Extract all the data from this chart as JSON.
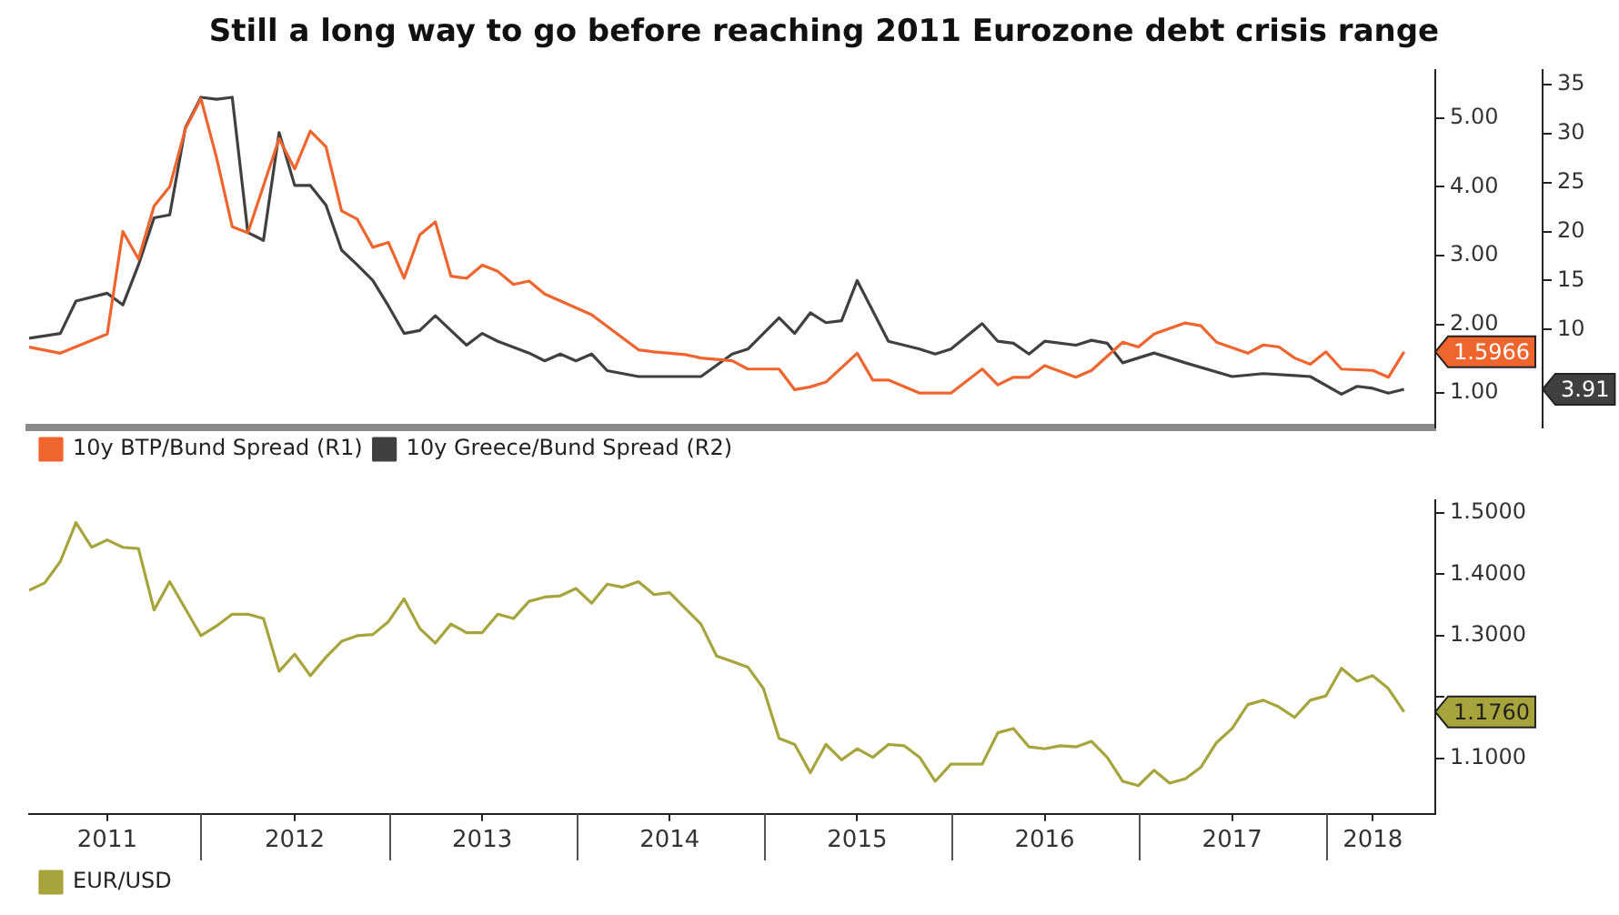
{
  "chart_data": [
    {
      "type": "line",
      "title": "Still a long way to go before reaching 2011 Eurozone debt crisis range",
      "tick_labels": "y",
      "legend": "bottom left",
      "marker": "none",
      "xlim": [
        "2011-02",
        "2018-08"
      ],
      "ylim": [
        0.5,
        5.7
      ],
      "yticks": [
        {
          "value": 1,
          "label": "1.00"
        },
        {
          "value": 2,
          "label": "2.00"
        },
        {
          "value": 3,
          "label": "3.00"
        },
        {
          "value": 4,
          "label": "4.00"
        },
        {
          "value": 5,
          "label": "5.00"
        }
      ],
      "y2lim": [
        0,
        36.5
      ],
      "y2ticks": [
        10,
        15,
        20,
        25,
        30,
        35
      ],
      "annotations": [
        "1.5966",
        "3.91"
      ],
      "series": [
        {
          "name": "10y BTP/Bund Spread (R1)",
          "color": "#f0642d",
          "x": [
            "2011-02",
            "2011-04",
            "2011-07",
            "2011-08",
            "2011-09",
            "2011-10",
            "2011-11",
            "2011-12",
            "2012-01",
            "2012-02",
            "2012-03",
            "2012-04",
            "2012-06",
            "2012-07",
            "2012-08",
            "2012-09",
            "2012-10",
            "2012-11",
            "2012-12",
            "2013-01",
            "2013-02",
            "2013-03",
            "2013-04",
            "2013-05",
            "2013-06",
            "2013-07",
            "2013-08",
            "2013-09",
            "2013-10",
            "2013-11",
            "2014-02",
            "2014-05",
            "2014-06",
            "2014-08",
            "2014-09",
            "2014-11",
            "2014-12",
            "2015-02",
            "2015-03",
            "2015-04",
            "2015-05",
            "2015-07",
            "2015-08",
            "2015-09",
            "2015-11",
            "2016-01",
            "2016-03",
            "2016-04",
            "2016-05",
            "2016-06",
            "2016-07",
            "2016-09",
            "2016-10",
            "2016-12",
            "2017-01",
            "2017-02",
            "2017-04",
            "2017-05",
            "2017-06",
            "2017-08",
            "2017-09",
            "2017-10",
            "2017-11",
            "2017-12",
            "2018-01",
            "2018-02",
            "2018-04",
            "2018-05",
            "2018-06"
          ],
          "values": [
            1.67,
            1.58,
            1.86,
            3.35,
            2.95,
            3.72,
            4.0,
            4.84,
            5.28,
            4.42,
            3.42,
            3.33,
            4.7,
            4.26,
            4.81,
            4.58,
            3.65,
            3.53,
            3.12,
            3.19,
            2.67,
            3.3,
            3.49,
            2.7,
            2.67,
            2.86,
            2.77,
            2.58,
            2.63,
            2.44,
            2.14,
            1.63,
            1.6,
            1.56,
            1.51,
            1.47,
            1.35,
            1.35,
            1.05,
            1.09,
            1.16,
            1.58,
            1.19,
            1.19,
            1.0,
            1.0,
            1.35,
            1.12,
            1.23,
            1.23,
            1.4,
            1.23,
            1.33,
            1.74,
            1.67,
            1.86,
            2.02,
            1.98,
            1.74,
            1.58,
            1.7,
            1.67,
            1.51,
            1.42,
            1.6,
            1.35,
            1.33,
            1.23,
            1.6
          ]
        },
        {
          "name": "10y Greece/Bund Spread (R2)",
          "color": "#404040",
          "axis": "y2",
          "x": [
            "2011-02",
            "2011-04",
            "2011-05",
            "2011-07",
            "2011-08",
            "2011-09",
            "2011-10",
            "2011-11",
            "2011-12",
            "2012-01",
            "2012-02",
            "2012-03",
            "2012-04",
            "2012-05",
            "2012-06",
            "2012-07",
            "2012-08",
            "2012-09",
            "2012-10",
            "2012-11",
            "2012-12",
            "2013-01",
            "2013-02",
            "2013-03",
            "2013-04",
            "2013-05",
            "2013-06",
            "2013-07",
            "2013-08",
            "2013-10",
            "2013-11",
            "2013-12",
            "2014-01",
            "2014-02",
            "2014-03",
            "2014-05",
            "2014-07",
            "2014-09",
            "2014-11",
            "2014-12",
            "2015-02",
            "2015-03",
            "2015-04",
            "2015-05",
            "2015-06",
            "2015-07",
            "2015-09",
            "2015-11",
            "2015-12",
            "2016-01",
            "2016-03",
            "2016-04",
            "2016-05",
            "2016-06",
            "2016-07",
            "2016-09",
            "2016-10",
            "2016-11",
            "2016-12",
            "2017-02",
            "2017-04",
            "2017-07",
            "2017-09",
            "2017-11",
            "2017-12",
            "2018-02",
            "2018-03",
            "2018-04",
            "2018-05",
            "2018-06"
          ],
          "values": [
            9.1,
            9.6,
            12.9,
            13.7,
            12.5,
            16.6,
            21.4,
            21.7,
            30.6,
            33.7,
            33.5,
            33.7,
            19.9,
            19.1,
            30.1,
            24.7,
            24.7,
            22.7,
            18.1,
            16.6,
            15.0,
            12.4,
            9.6,
            9.9,
            11.4,
            9.9,
            8.4,
            9.6,
            8.8,
            7.6,
            6.8,
            7.5,
            6.8,
            7.5,
            5.8,
            5.2,
            5.2,
            5.2,
            7.5,
            8.0,
            11.2,
            9.6,
            11.7,
            10.7,
            10.9,
            15.0,
            8.8,
            8.0,
            7.5,
            8.0,
            10.6,
            8.8,
            8.6,
            7.5,
            8.8,
            8.4,
            8.9,
            8.6,
            6.6,
            7.6,
            6.6,
            5.2,
            5.5,
            5.3,
            5.2,
            3.4,
            4.2,
            4.0,
            3.5,
            3.9
          ]
        }
      ]
    },
    {
      "type": "line",
      "legend": "bottom left",
      "marker": "none",
      "xlim": [
        "2011-02",
        "2018-08"
      ],
      "xticks": [
        {
          "value": "2011-07",
          "label": "2011"
        },
        {
          "value": "2012-07",
          "label": "2012"
        },
        {
          "value": "2013-07",
          "label": "2013"
        },
        {
          "value": "2014-07",
          "label": "2014"
        },
        {
          "value": "2015-07",
          "label": "2015"
        },
        {
          "value": "2016-07",
          "label": "2016"
        },
        {
          "value": "2017-07",
          "label": "2017"
        },
        {
          "value": "2018-04",
          "label": "2018"
        }
      ],
      "ylim": [
        1.01,
        1.52
      ],
      "yticks": [
        {
          "value": 1.1,
          "label": "1.1000"
        },
        {
          "value": 1.2,
          "label": null
        },
        {
          "value": 1.3,
          "label": "1.3000"
        },
        {
          "value": 1.4,
          "label": "1.4000"
        },
        {
          "value": 1.5,
          "label": "1.5000"
        }
      ],
      "annotations": [
        "1.1760"
      ],
      "series": [
        {
          "name": "EUR/USD",
          "color": "#a8a43c",
          "x": [
            "2011-02",
            "2011-03",
            "2011-04",
            "2011-05",
            "2011-06",
            "2011-07",
            "2011-08",
            "2011-09",
            "2011-10",
            "2011-11",
            "2012-01",
            "2012-02",
            "2012-03",
            "2012-04",
            "2012-05",
            "2012-06",
            "2012-07",
            "2012-08",
            "2012-09",
            "2012-10",
            "2012-11",
            "2012-12",
            "2013-01",
            "2013-02",
            "2013-03",
            "2013-04",
            "2013-05",
            "2013-06",
            "2013-07",
            "2013-08",
            "2013-09",
            "2013-10",
            "2013-11",
            "2013-12",
            "2014-01",
            "2014-02",
            "2014-03",
            "2014-04",
            "2014-05",
            "2014-06",
            "2014-07",
            "2014-09",
            "2014-10",
            "2014-11",
            "2014-12",
            "2015-01",
            "2015-02",
            "2015-03",
            "2015-04",
            "2015-05",
            "2015-06",
            "2015-07",
            "2015-08",
            "2015-09",
            "2015-10",
            "2015-11",
            "2015-12",
            "2016-01",
            "2016-03",
            "2016-04",
            "2016-05",
            "2016-06",
            "2016-07",
            "2016-08",
            "2016-09",
            "2016-10",
            "2016-11",
            "2016-12",
            "2017-01",
            "2017-02",
            "2017-03",
            "2017-04",
            "2017-05",
            "2017-06",
            "2017-07",
            "2017-08",
            "2017-09",
            "2017-10",
            "2017-11",
            "2017-12",
            "2018-01",
            "2018-02",
            "2018-03",
            "2018-04",
            "2018-05",
            "2018-06"
          ],
          "values": [
            1.374,
            1.386,
            1.421,
            1.484,
            1.444,
            1.456,
            1.444,
            1.442,
            1.342,
            1.388,
            1.3,
            1.316,
            1.335,
            1.335,
            1.328,
            1.242,
            1.27,
            1.235,
            1.265,
            1.291,
            1.3,
            1.302,
            1.323,
            1.36,
            1.312,
            1.288,
            1.319,
            1.305,
            1.305,
            1.335,
            1.328,
            1.356,
            1.363,
            1.365,
            1.377,
            1.353,
            1.384,
            1.379,
            1.388,
            1.367,
            1.37,
            1.319,
            1.267,
            1.258,
            1.249,
            1.214,
            1.133,
            1.123,
            1.077,
            1.123,
            1.098,
            1.116,
            1.102,
            1.123,
            1.121,
            1.102,
            1.063,
            1.091,
            1.091,
            1.142,
            1.149,
            1.119,
            1.116,
            1.121,
            1.119,
            1.128,
            1.102,
            1.063,
            1.056,
            1.081,
            1.06,
            1.067,
            1.086,
            1.126,
            1.149,
            1.188,
            1.195,
            1.184,
            1.167,
            1.195,
            1.202,
            1.247,
            1.226,
            1.235,
            1.214,
            1.176
          ]
        }
      ]
    }
  ]
}
